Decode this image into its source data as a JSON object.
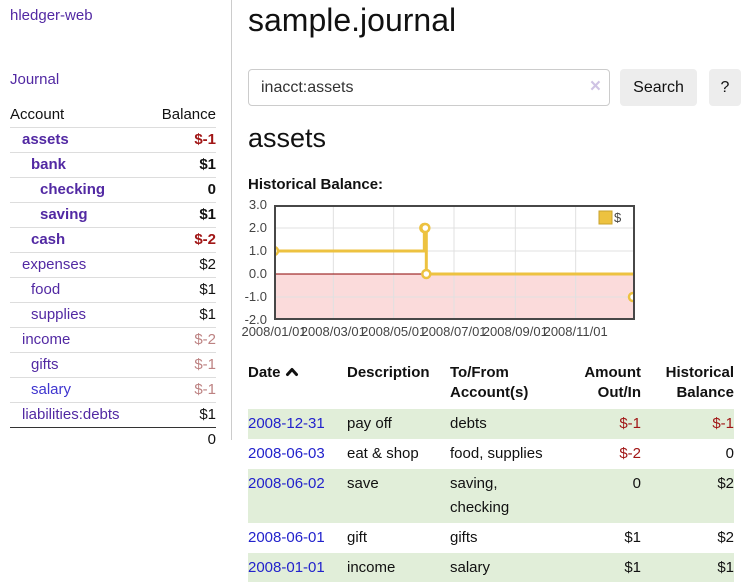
{
  "colors": {
    "accent_purple": "#5229a3",
    "link_blue": "#2222cc",
    "negative_red": "#a11616",
    "negative_muted_red": "#bd8282",
    "row_green": "#e1eed9",
    "series_yellow": "#edc240",
    "zero_line_red": "#8b0000"
  },
  "sidebar": {
    "app_title": "hledger-web",
    "journal_link": "Journal",
    "accounts": {
      "header": {
        "account": "Account",
        "balance": "Balance"
      },
      "rows": [
        {
          "name": "assets",
          "balance": "$-1"
        },
        {
          "name": "bank",
          "balance": "$1"
        },
        {
          "name": "checking",
          "balance": "0"
        },
        {
          "name": "saving",
          "balance": "$1"
        },
        {
          "name": "cash",
          "balance": "$-2"
        },
        {
          "name": "expenses",
          "balance": "$2"
        },
        {
          "name": "food",
          "balance": "$1"
        },
        {
          "name": "supplies",
          "balance": "$1"
        },
        {
          "name": "income",
          "balance": "$-2"
        },
        {
          "name": "gifts",
          "balance": "$-1"
        },
        {
          "name": "salary",
          "balance": "$-1"
        },
        {
          "name": "liabilities:debts",
          "balance": "$1"
        }
      ],
      "total": "0"
    }
  },
  "header": {
    "title": "sample.journal"
  },
  "search": {
    "value": "inacct:assets",
    "clear_icon": "×",
    "search_button": "Search",
    "help_button": "?"
  },
  "account_page": {
    "heading": "assets",
    "chart_title": "Historical Balance:"
  },
  "chart_data": {
    "type": "line",
    "step": true,
    "title": "Historical Balance:",
    "legend_position": "top-right",
    "grid": true,
    "ylim": [
      -2.0,
      3.0
    ],
    "yticks": [
      3.0,
      2.0,
      1.0,
      0.0,
      -1.0,
      -2.0
    ],
    "x_total_days": 365,
    "xticks": [
      {
        "label": "2008/01/01",
        "day": 0
      },
      {
        "label": "2008/03/01",
        "day": 60
      },
      {
        "label": "2008/05/01",
        "day": 121
      },
      {
        "label": "2008/07/01",
        "day": 182
      },
      {
        "label": "2008/09/01",
        "day": 244
      },
      {
        "label": "2008/11/01",
        "day": 305
      }
    ],
    "series": [
      {
        "name": "$",
        "color": "#edc240",
        "points": [
          {
            "date": "2008-01-01",
            "day": 0,
            "value": 1
          },
          {
            "date": "2008-06-01",
            "day": 152,
            "value": 2
          },
          {
            "date": "2008-06-02",
            "day": 153,
            "value": 2
          },
          {
            "date": "2008-06-03",
            "day": 154,
            "value": 0
          },
          {
            "date": "2008-12-31",
            "day": 365,
            "value": -1
          }
        ]
      }
    ],
    "negative_region_color": "#fbdbdb",
    "zero_line_color": "#8b0000"
  },
  "register": {
    "headers": {
      "date": "Date",
      "description": "Description",
      "accounts_line1": "To/From",
      "accounts_line2": "Account(s)",
      "amount_line1": "Amount",
      "amount_line2": "Out/In",
      "balance_line1": "Historical",
      "balance_line2": "Balance"
    },
    "rows": [
      {
        "date": "2008-12-31",
        "description": "pay off",
        "accounts": "debts",
        "amount": "$-1",
        "balance": "$-1"
      },
      {
        "date": "2008-06-03",
        "description": "eat & shop",
        "accounts": "food, supplies",
        "amount": "$-2",
        "balance": "0"
      },
      {
        "date": "2008-06-02",
        "description": "save",
        "accounts": "saving, checking",
        "amount": "0",
        "balance": "$2"
      },
      {
        "date": "2008-06-01",
        "description": "gift",
        "accounts": "gifts",
        "amount": "$1",
        "balance": "$2"
      },
      {
        "date": "2008-01-01",
        "description": "income",
        "accounts": "salary",
        "amount": "$1",
        "balance": "$1"
      }
    ]
  }
}
